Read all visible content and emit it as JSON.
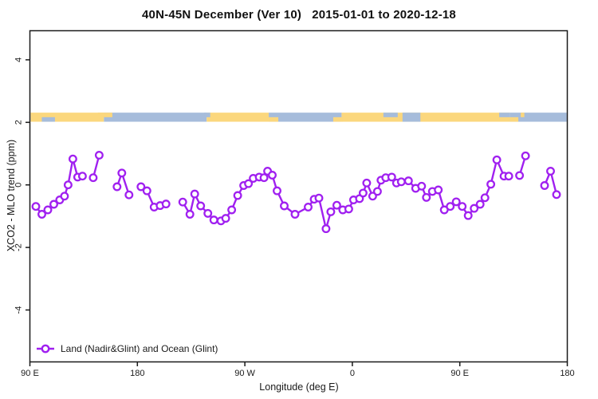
{
  "chart_data": {
    "type": "line",
    "title": "40N-45N December (Ver 10)   2015-01-01 to 2020-12-18",
    "xlabel": "Longitude (deg E)",
    "ylabel": "XCO2 - MLO trend (ppm)",
    "xlim": [
      90,
      540
    ],
    "ylim": [
      -5.66,
      4.93
    ],
    "grid": false,
    "x_ticks": {
      "values": [
        90,
        180,
        270,
        360,
        450,
        540
      ],
      "labels": [
        "90 E",
        "180",
        "90 W",
        "0",
        "90 E",
        "180"
      ]
    },
    "y_ticks": {
      "values": [
        -4,
        -2,
        0,
        2,
        4
      ],
      "labels": [
        "-4",
        "-2",
        "0",
        "2",
        "4"
      ]
    },
    "legend": {
      "position": "bottomleft",
      "label": "Land (Nadir&Glint) and Ocean (Glint)"
    },
    "colors": {
      "series": "#A020F0",
      "marker_fill": "#ffffff",
      "land_band": "#FBD77D",
      "ocean_band": "#A6BCDB",
      "axis": "#1a1a1a"
    },
    "surface_band": {
      "value_top": 2.31,
      "value_bottom": 2.02,
      "base_segments": [
        {
          "from": 90.7,
          "to": 152,
          "type": "land"
        },
        {
          "from": 152,
          "to": 238,
          "type": "ocean"
        },
        {
          "from": 238,
          "to": 290,
          "type": "land"
        },
        {
          "from": 290,
          "to": 351,
          "type": "ocean"
        },
        {
          "from": 351,
          "to": 492,
          "type": "land"
        },
        {
          "from": 492,
          "to": 539.5,
          "type": "ocean"
        }
      ],
      "patches": [
        {
          "from": 100,
          "to": 111,
          "type": "ocean",
          "half": "bottom"
        },
        {
          "from": 147,
          "to": 159,
          "type": "land",
          "half": "top"
        },
        {
          "from": 236,
          "to": 241,
          "type": "ocean",
          "half": "top"
        },
        {
          "from": 290,
          "to": 298,
          "type": "land",
          "half": "bottom"
        },
        {
          "from": 344,
          "to": 352,
          "type": "land",
          "half": "bottom"
        },
        {
          "from": 386,
          "to": 398,
          "type": "ocean",
          "half": "top"
        },
        {
          "from": 402,
          "to": 417,
          "type": "ocean",
          "half": "full"
        },
        {
          "from": 483,
          "to": 492,
          "type": "ocean",
          "half": "top"
        },
        {
          "from": 492,
          "to": 499,
          "type": "land",
          "half": "bottom"
        },
        {
          "from": 501,
          "to": 504,
          "type": "land",
          "half": "top"
        }
      ]
    },
    "series": {
      "name": "Land (Nadir&Glint) and Ocean (Glint)",
      "segments": [
        [
          [
            95,
            -0.69
          ],
          [
            100,
            -0.94
          ],
          [
            105,
            -0.8
          ],
          [
            110,
            -0.62
          ],
          [
            115,
            -0.48
          ],
          [
            119,
            -0.36
          ],
          [
            122,
            0.0
          ],
          [
            126,
            0.83
          ],
          [
            130,
            0.25
          ],
          [
            134,
            0.28
          ]
        ],
        [
          [
            143,
            0.23
          ],
          [
            148,
            0.95
          ]
        ],
        [
          [
            163,
            -0.06
          ],
          [
            167,
            0.38
          ],
          [
            173,
            -0.32
          ]
        ],
        [
          [
            183,
            -0.06
          ],
          [
            188,
            -0.19
          ],
          [
            194,
            -0.71
          ],
          [
            199,
            -0.66
          ],
          [
            204,
            -0.61
          ]
        ],
        [
          [
            218,
            -0.55
          ],
          [
            224,
            -0.94
          ],
          [
            228,
            -0.29
          ],
          [
            233,
            -0.67
          ],
          [
            239,
            -0.91
          ],
          [
            244,
            -1.12
          ],
          [
            250,
            -1.15
          ],
          [
            254,
            -1.07
          ],
          [
            259,
            -0.8
          ],
          [
            264,
            -0.34
          ],
          [
            269,
            -0.02
          ],
          [
            273,
            0.04
          ],
          [
            277,
            0.21
          ],
          [
            282,
            0.25
          ],
          [
            286,
            0.23
          ],
          [
            289,
            0.44
          ],
          [
            293,
            0.31
          ],
          [
            297,
            -0.19
          ],
          [
            303,
            -0.67
          ],
          [
            312,
            -0.94
          ],
          [
            323,
            -0.71
          ],
          [
            328,
            -0.46
          ],
          [
            332,
            -0.42
          ],
          [
            338,
            -1.4
          ],
          [
            342,
            -0.86
          ],
          [
            347,
            -0.65
          ],
          [
            352,
            -0.8
          ],
          [
            357,
            -0.77
          ],
          [
            361,
            -0.48
          ],
          [
            366,
            -0.44
          ],
          [
            369,
            -0.26
          ],
          [
            372,
            0.06
          ],
          [
            377,
            -0.36
          ],
          [
            381,
            -0.21
          ],
          [
            384,
            0.15
          ],
          [
            388,
            0.23
          ],
          [
            393,
            0.25
          ],
          [
            397,
            0.06
          ],
          [
            401,
            0.1
          ],
          [
            407,
            0.13
          ],
          [
            413,
            -0.11
          ],
          [
            418,
            -0.04
          ],
          [
            422,
            -0.4
          ],
          [
            427,
            -0.21
          ],
          [
            432,
            -0.16
          ],
          [
            437,
            -0.8
          ],
          [
            442,
            -0.69
          ],
          [
            447,
            -0.54
          ],
          [
            452,
            -0.69
          ],
          [
            457,
            -0.98
          ],
          [
            462,
            -0.75
          ],
          [
            467,
            -0.62
          ],
          [
            471,
            -0.41
          ],
          [
            476,
            0.02
          ],
          [
            481,
            0.8
          ],
          [
            487,
            0.28
          ],
          [
            491,
            0.28
          ]
        ],
        [
          [
            500,
            0.3
          ],
          [
            505,
            0.93
          ]
        ],
        [
          [
            521,
            -0.02
          ],
          [
            526,
            0.44
          ],
          [
            531,
            -0.31
          ]
        ]
      ]
    }
  }
}
